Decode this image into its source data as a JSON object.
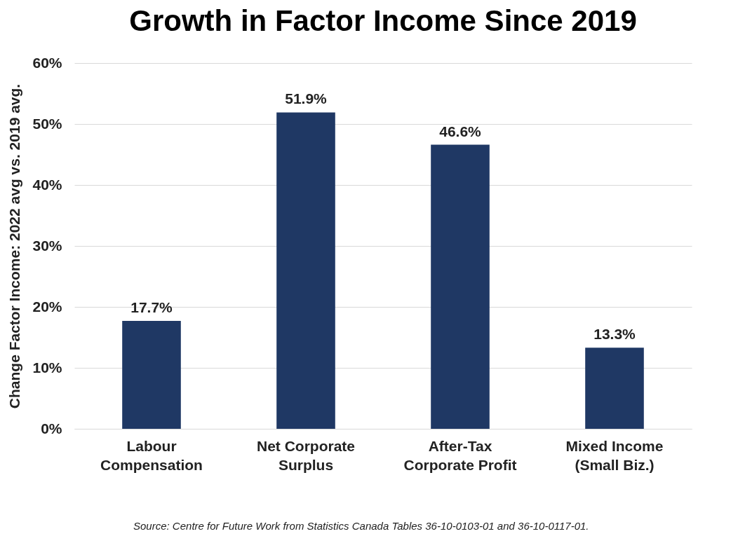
{
  "chart_data": {
    "type": "bar",
    "title": "Growth in Factor Income Since 2019",
    "ylabel": "Change Factor Income: 2022 avg vs. 2019 avg.",
    "categories": [
      "Labour\nCompensation",
      "Net Corporate\nSurplus",
      "After-Tax\nCorporate Profit",
      "Mixed Income\n(Small Biz.)"
    ],
    "values": [
      17.7,
      51.9,
      46.6,
      13.3
    ],
    "value_labels": [
      "17.7%",
      "51.9%",
      "46.6%",
      "13.3%"
    ],
    "color": "#1f3864",
    "ylim": [
      0,
      60
    ],
    "yticks": [
      {
        "value": 0,
        "label": "0%"
      },
      {
        "value": 10,
        "label": "10%"
      },
      {
        "value": 20,
        "label": "20%"
      },
      {
        "value": 30,
        "label": "30%"
      },
      {
        "value": 40,
        "label": "40%"
      },
      {
        "value": 50,
        "label": "50%"
      },
      {
        "value": 60,
        "label": "60%"
      }
    ],
    "grid": "y",
    "annotations": [
      "Source: Centre for Future Work from Statistics Canada Tables 36-10-0103-01 and 36-10-0117-01."
    ]
  }
}
